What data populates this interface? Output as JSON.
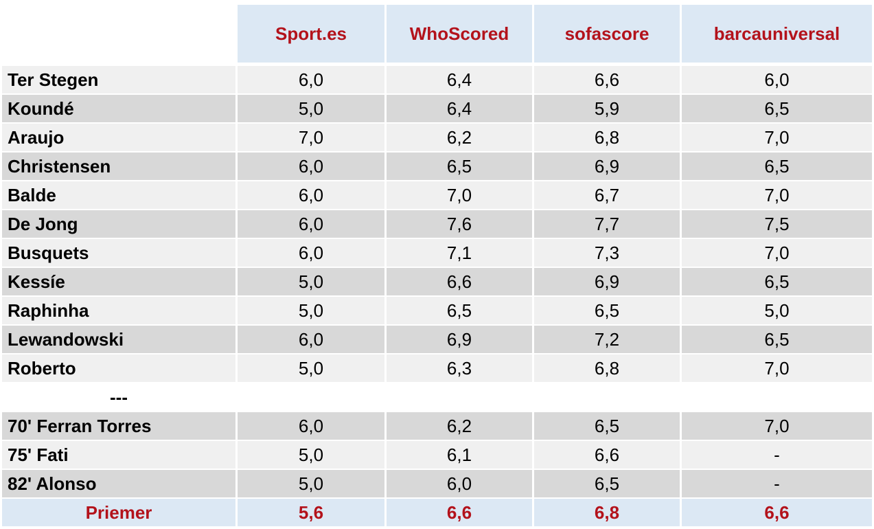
{
  "columns": [
    "Sport.es",
    "WhoScored",
    "sofascore",
    "barcauniversal"
  ],
  "players": [
    {
      "name": "Ter Stegen",
      "ratings": [
        "6,0",
        "6,4",
        "6,6",
        "6,0"
      ]
    },
    {
      "name": "Koundé",
      "ratings": [
        "5,0",
        "6,4",
        "5,9",
        "6,5"
      ]
    },
    {
      "name": "Araujo",
      "ratings": [
        "7,0",
        "6,2",
        "6,8",
        "7,0"
      ]
    },
    {
      "name": "Christensen",
      "ratings": [
        "6,0",
        "6,5",
        "6,9",
        "6,5"
      ]
    },
    {
      "name": "Balde",
      "ratings": [
        "6,0",
        "7,0",
        "6,7",
        "7,0"
      ]
    },
    {
      "name": "De Jong",
      "ratings": [
        "6,0",
        "7,6",
        "7,7",
        "7,5"
      ]
    },
    {
      "name": "Busquets",
      "ratings": [
        "6,0",
        "7,1",
        "7,3",
        "7,0"
      ]
    },
    {
      "name": "Kessíe",
      "ratings": [
        "5,0",
        "6,6",
        "6,9",
        "6,5"
      ]
    },
    {
      "name": "Raphinha",
      "ratings": [
        "5,0",
        "6,5",
        "6,5",
        "5,0"
      ]
    },
    {
      "name": "Lewandowski",
      "ratings": [
        "6,0",
        "6,9",
        "7,2",
        "6,5"
      ]
    },
    {
      "name": "Roberto",
      "ratings": [
        "5,0",
        "6,3",
        "6,8",
        "7,0"
      ]
    }
  ],
  "separator": "---",
  "subs": [
    {
      "name": "70' Ferran Torres",
      "ratings": [
        "6,0",
        "6,2",
        "6,5",
        "7,0"
      ]
    },
    {
      "name": "75' Fati",
      "ratings": [
        "5,0",
        "6,1",
        "6,6",
        "-"
      ]
    },
    {
      "name": "82' Alonso",
      "ratings": [
        "5,0",
        "6,0",
        "6,5",
        "-"
      ]
    }
  ],
  "average": {
    "label": "Priemer",
    "ratings": [
      "5,6",
      "6,6",
      "6,8",
      "6,6"
    ]
  },
  "colors": {
    "accent": "#b3121b",
    "header_bg": "#dce8f4",
    "row_light": "#f0f0f0",
    "row_dark": "#d8d8d8"
  }
}
